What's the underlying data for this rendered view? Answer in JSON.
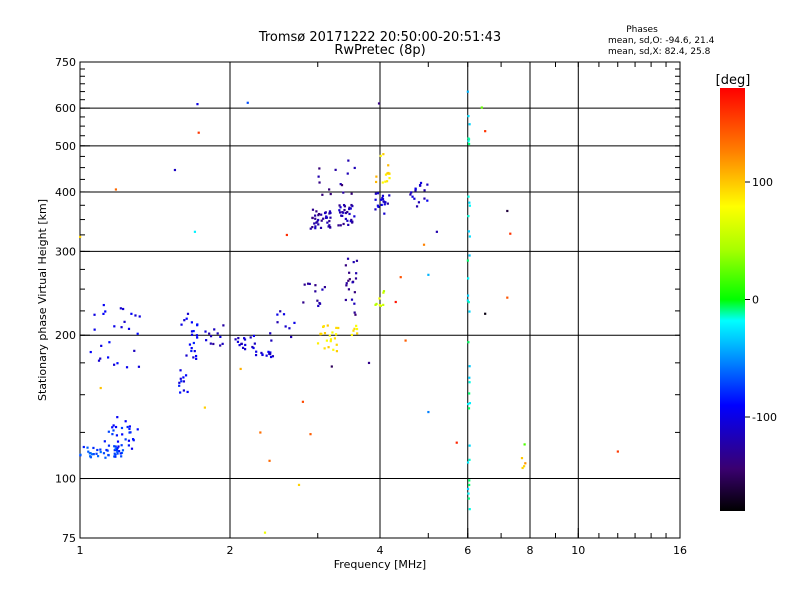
{
  "chart_data": {
    "type": "scatter",
    "title": "Tromsø 20171222 20:50:00-20:51:43",
    "subtitle": "RwPretec (8p)",
    "xlabel": "Frequency [MHz]",
    "ylabel": "Stationary phase Virtual Height [km]",
    "x_scale": "log",
    "y_scale": "log",
    "xlim": [
      1,
      16
    ],
    "ylim": [
      75,
      750
    ],
    "x_ticks": [
      1,
      2,
      4,
      6,
      8,
      10,
      16
    ],
    "x_tick_labels": [
      "1",
      "2",
      "4",
      "6",
      "8",
      "10",
      "16"
    ],
    "y_ticks": [
      75,
      100,
      200,
      300,
      400,
      500,
      600,
      750
    ],
    "y_tick_labels": [
      "75",
      "100",
      "200",
      "300",
      "400",
      "500",
      "600",
      "750"
    ],
    "grid": true,
    "grid_x": [
      2,
      4,
      6,
      8,
      10
    ],
    "grid_y": [
      100,
      200,
      300,
      400,
      500,
      600
    ],
    "stats": {
      "heading": "Phases",
      "line1": "mean, sd,O: -94.6, 21.4",
      "line2": "mean, sd,X:  82.4, 25.8"
    },
    "colorbar": {
      "label": "[deg]",
      "range": [
        -180,
        180
      ],
      "ticks": [
        100,
        0,
        -100
      ],
      "tick_labels": [
        "100",
        "0",
        "-100"
      ]
    },
    "point_groups": [
      {
        "x": [
          1.0,
          1.22
        ],
        "y": [
          110,
          117
        ],
        "phase": -70,
        "n": 40
      },
      {
        "x": [
          1.12,
          1.32
        ],
        "y": [
          115,
          135
        ],
        "phase": -85,
        "n": 30
      },
      {
        "x": [
          1.04,
          1.32
        ],
        "y": [
          170,
          235
        ],
        "phase": -100,
        "n": 26
      },
      {
        "x": [
          1.58,
          1.72
        ],
        "y": [
          150,
          230
        ],
        "phase": -95,
        "n": 32
      },
      {
        "x": [
          1.78,
          1.95
        ],
        "y": [
          190,
          215
        ],
        "phase": -115,
        "n": 12
      },
      {
        "x": [
          2.05,
          2.25
        ],
        "y": [
          185,
          200
        ],
        "phase": -110,
        "n": 16
      },
      {
        "x": [
          2.25,
          2.45
        ],
        "y": [
          180,
          185
        ],
        "phase": -100,
        "n": 12
      },
      {
        "x": [
          2.4,
          2.7
        ],
        "y": [
          190,
          230
        ],
        "phase": -110,
        "n": 10
      },
      {
        "x": [
          2.75,
          3.1
        ],
        "y": [
          230,
          260
        ],
        "phase": -125,
        "n": 12
      },
      {
        "x": [
          3.0,
          3.3
        ],
        "y": [
          185,
          210
        ],
        "phase": 85,
        "n": 22
      },
      {
        "x": [
          2.9,
          3.2
        ],
        "y": [
          335,
          370
        ],
        "phase": -125,
        "n": 36
      },
      {
        "x": [
          3.3,
          3.6
        ],
        "y": [
          340,
          380
        ],
        "phase": -120,
        "n": 30
      },
      {
        "x": [
          3.0,
          3.6
        ],
        "y": [
          380,
          470
        ],
        "phase": -130,
        "n": 14
      },
      {
        "x": [
          3.4,
          3.6
        ],
        "y": [
          220,
          290
        ],
        "phase": -130,
        "n": 20
      },
      {
        "x": [
          3.5,
          3.6
        ],
        "y": [
          200,
          210
        ],
        "phase": 90,
        "n": 6
      },
      {
        "x": [
          3.9,
          4.2
        ],
        "y": [
          360,
          400
        ],
        "phase": -110,
        "n": 18
      },
      {
        "x": [
          3.9,
          4.2
        ],
        "y": [
          400,
          490
        ],
        "phase": 95,
        "n": 14
      },
      {
        "x": [
          4.6,
          5.0
        ],
        "y": [
          370,
          420
        ],
        "phase": -110,
        "n": 16
      },
      {
        "x": [
          3.9,
          4.1
        ],
        "y": [
          220,
          250
        ],
        "phase": 60,
        "n": 8
      },
      {
        "x": [
          6.0,
          6.06
        ],
        "y": [
          85,
          620
        ],
        "phase": -20,
        "n": 36
      },
      {
        "x": [
          7.7,
          7.85
        ],
        "y": [
          105,
          112
        ],
        "phase": 110,
        "n": 4
      }
    ],
    "scatter_points": [
      {
        "x": 1.18,
        "y": 405,
        "phase": 150
      },
      {
        "x": 1.73,
        "y": 533,
        "phase": 150
      },
      {
        "x": 1.72,
        "y": 612,
        "phase": -110
      },
      {
        "x": 2.17,
        "y": 616,
        "phase": -60
      },
      {
        "x": 3.98,
        "y": 614,
        "phase": -150
      },
      {
        "x": 6.5,
        "y": 537,
        "phase": 150
      },
      {
        "x": 6.4,
        "y": 602,
        "phase": 40
      },
      {
        "x": 7.3,
        "y": 327,
        "phase": 150
      },
      {
        "x": 7.2,
        "y": 365,
        "phase": -150
      },
      {
        "x": 6.5,
        "y": 222,
        "phase": -160
      },
      {
        "x": 7.2,
        "y": 240,
        "phase": 140
      },
      {
        "x": 5.0,
        "y": 138,
        "phase": -40
      },
      {
        "x": 5.7,
        "y": 119,
        "phase": 160
      },
      {
        "x": 12.0,
        "y": 114,
        "phase": 160
      },
      {
        "x": 1.78,
        "y": 141,
        "phase": 110
      },
      {
        "x": 2.3,
        "y": 125,
        "phase": 120
      },
      {
        "x": 2.4,
        "y": 109,
        "phase": 150
      },
      {
        "x": 2.8,
        "y": 145,
        "phase": 150
      },
      {
        "x": 2.9,
        "y": 124,
        "phase": 150
      },
      {
        "x": 2.75,
        "y": 97,
        "phase": 110
      },
      {
        "x": 2.35,
        "y": 77,
        "phase": 60
      },
      {
        "x": 2.6,
        "y": 325,
        "phase": 150
      },
      {
        "x": 4.4,
        "y": 265,
        "phase": 140
      },
      {
        "x": 5.0,
        "y": 268,
        "phase": -40
      },
      {
        "x": 1.55,
        "y": 445,
        "phase": -110
      },
      {
        "x": 1.7,
        "y": 330,
        "phase": -20
      },
      {
        "x": 2.1,
        "y": 170,
        "phase": 110
      },
      {
        "x": 4.3,
        "y": 235,
        "phase": 170
      },
      {
        "x": 4.9,
        "y": 310,
        "phase": 140
      },
      {
        "x": 6.0,
        "y": 650,
        "phase": -30
      },
      {
        "x": 7.8,
        "y": 118,
        "phase": 20
      },
      {
        "x": 3.8,
        "y": 175,
        "phase": -130
      },
      {
        "x": 3.2,
        "y": 172,
        "phase": -140
      },
      {
        "x": 1.1,
        "y": 155,
        "phase": 110
      },
      {
        "x": 1.0,
        "y": 322,
        "phase": 100
      },
      {
        "x": 5.2,
        "y": 330,
        "phase": -120
      },
      {
        "x": 4.5,
        "y": 195,
        "phase": 150
      }
    ]
  }
}
